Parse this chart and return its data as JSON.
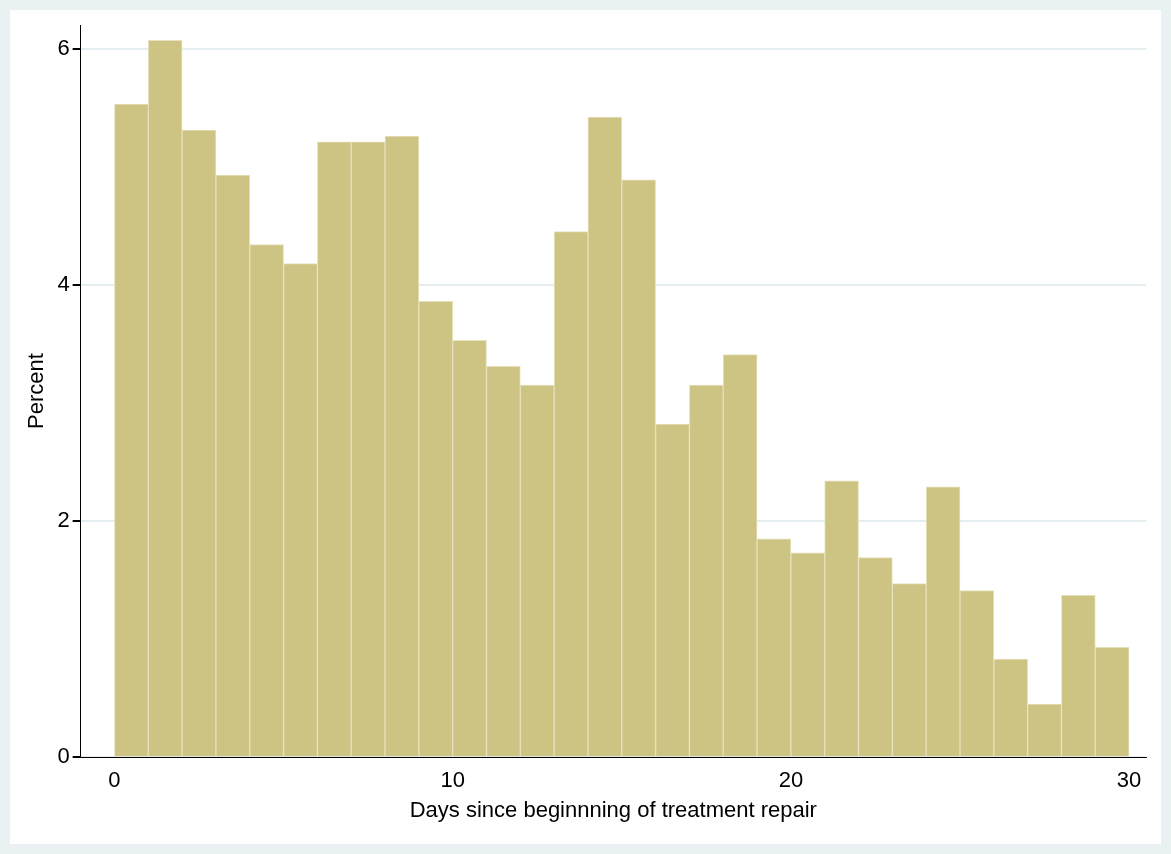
{
  "chart_data": {
    "type": "histogram",
    "xlabel": "Days since beginnning of treatment repair",
    "ylabel": "Percent",
    "bins": [
      0,
      1,
      2,
      3,
      4,
      5,
      6,
      7,
      8,
      9,
      10,
      11,
      12,
      13,
      14,
      15,
      16,
      17,
      18,
      19,
      20,
      21,
      22,
      23,
      24,
      25,
      26,
      27,
      28,
      29,
      30
    ],
    "values": [
      5.53,
      6.07,
      5.31,
      4.93,
      4.34,
      4.18,
      5.21,
      5.21,
      5.26,
      3.86,
      3.53,
      3.31,
      3.15,
      4.45,
      5.42,
      4.89,
      2.82,
      3.15,
      3.41,
      1.85,
      1.73,
      2.34,
      1.69,
      1.47,
      2.29,
      1.41,
      0.83,
      0.45,
      1.37,
      0.93
    ],
    "color": "#cdc383",
    "xlim": [
      -1,
      30.5
    ],
    "xticks": [
      0,
      10,
      20,
      30
    ],
    "ylim": [
      0,
      6.2
    ],
    "yticks": [
      0,
      2,
      4,
      6
    ],
    "grid": "y",
    "legend": false
  }
}
